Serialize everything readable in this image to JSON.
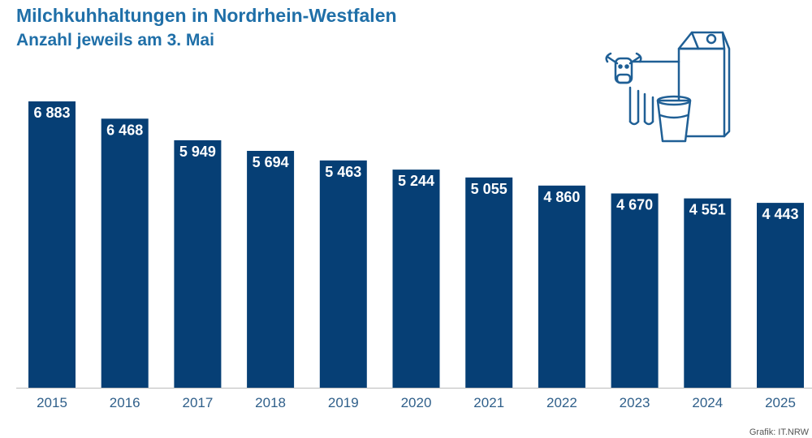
{
  "title": "Milchkuhhaltungen in Nordrhein-Westfalen",
  "subtitle": "Anzahl jeweils am 3. Mai",
  "credit": "Grafik: IT.NRW",
  "colors": {
    "bar": "#063f75",
    "title": "#1f6fa8",
    "icon": "#1f5f95",
    "axis": "#bbbbbb"
  },
  "icon": "cow-milk-carton-glass-icon",
  "chart_data": {
    "type": "bar",
    "title": "Milchkuhhaltungen in Nordrhein-Westfalen",
    "subtitle": "Anzahl jeweils am 3. Mai",
    "categories": [
      "2015",
      "2016",
      "2017",
      "2018",
      "2019",
      "2020",
      "2021",
      "2022",
      "2023",
      "2024",
      "2025"
    ],
    "values": [
      6883,
      6468,
      5949,
      5694,
      5463,
      5244,
      5055,
      4860,
      4670,
      4551,
      4443
    ],
    "value_labels": [
      "6 883",
      "6 468",
      "5 949",
      "5 694",
      "5 463",
      "5 244",
      "5 055",
      "4 860",
      "4 670",
      "4 551",
      "4 443"
    ],
    "xlabel": "",
    "ylabel": "",
    "ylim": [
      0,
      7400
    ],
    "grid": false,
    "legend": "none"
  }
}
